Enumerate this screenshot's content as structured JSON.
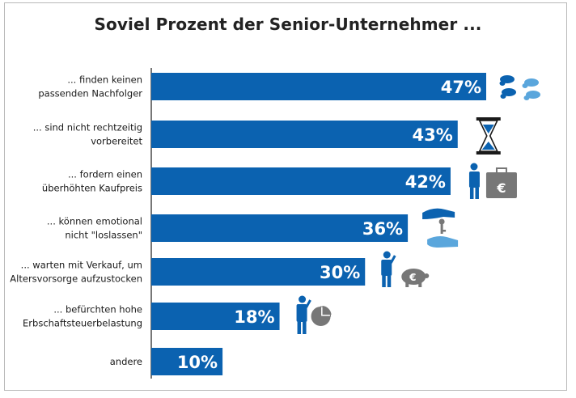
{
  "title": "Soviel Prozent der Senior-Unternehmer ...",
  "colors": {
    "bar": "#0b62b0",
    "icon_blue": "#0b62b0",
    "icon_light": "#5aa6dc",
    "icon_grey": "#777777"
  },
  "chart_data": {
    "type": "bar",
    "orientation": "horizontal",
    "title": "Soviel Prozent der Senior-Unternehmer ...",
    "xlabel": "",
    "ylabel": "",
    "grid": false,
    "xlim": [
      0,
      47
    ],
    "categories": [
      [
        "... finden keinen",
        "passenden Nachfolger"
      ],
      [
        "... sind nicht rechtzeitig",
        "vorbereitet"
      ],
      [
        "... fordern einen",
        "überhöhten Kaufpreis"
      ],
      [
        "... können emotional",
        "nicht \"loslassen\""
      ],
      [
        "... warten mit Verkauf, um",
        "Altersvorsorge aufzustocken"
      ],
      [
        "... befürchten hohe",
        "Erbschaftsteuerbelastung"
      ],
      [
        "andere"
      ]
    ],
    "values": [
      47,
      43,
      42,
      36,
      30,
      18,
      10
    ],
    "value_labels": [
      "47%",
      "43%",
      "42%",
      "36%",
      "30%",
      "18%",
      "10%"
    ],
    "icons": [
      "footprints-icon",
      "hourglass-icon",
      "businessman-money-bag-icon",
      "hand-key-icon",
      "thinking-man-piggy-bank-icon",
      "thinking-man-pie-chart-icon",
      ""
    ]
  }
}
